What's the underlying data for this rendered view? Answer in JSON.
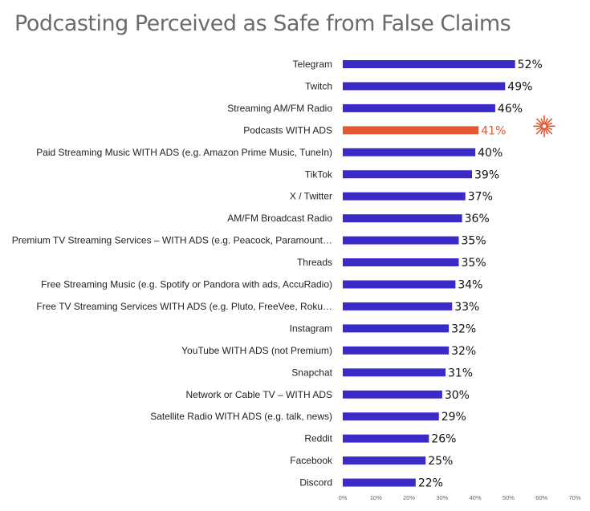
{
  "chart_data": {
    "type": "bar",
    "orientation": "horizontal",
    "title": "Podcasting Perceived as Safe from False Claims",
    "categories": [
      "Telegram",
      "Twitch",
      "Streaming AM/FM Radio",
      "Podcasts WITH ADS",
      "Paid Streaming Music WITH ADS (e.g. Amazon Prime Music, TuneIn)",
      "TikTok",
      "X / Twitter",
      "AM/FM Broadcast Radio",
      "Premium TV Streaming Services – WITH ADS (e.g. Peacock, Paramount…",
      "Threads",
      "Free Streaming Music (e.g. Spotify or Pandora with ads, AccuRadio)",
      "Free TV Streaming Services WITH ADS (e.g. Pluto, FreeVee, Roku…",
      "Instagram",
      "YouTube WITH ADS (not Premium)",
      "Snapchat",
      "Network or Cable TV – WITH ADS",
      "Satellite Radio WITH ADS (e.g. talk, news)",
      "Reddit",
      "Facebook",
      "Discord"
    ],
    "values": [
      52,
      49,
      46,
      41,
      40,
      39,
      37,
      36,
      35,
      35,
      34,
      33,
      32,
      32,
      31,
      30,
      29,
      26,
      25,
      22
    ],
    "value_labels": [
      "52%",
      "49%",
      "46%",
      "41%",
      "40%",
      "39%",
      "37%",
      "36%",
      "35%",
      "35%",
      "34%",
      "33%",
      "32%",
      "32%",
      "31%",
      "30%",
      "29%",
      "26%",
      "25%",
      "22%"
    ],
    "highlight_index": 3,
    "xlim": [
      0,
      70
    ],
    "x_ticks": [
      "0%",
      "10%",
      "20%",
      "30%",
      "40%",
      "50%",
      "60%",
      "70%"
    ],
    "grid": false,
    "colors": {
      "bar": "#3a2bc9",
      "highlight": "#e5582f",
      "highlight_label": "#e5582f",
      "burst": "#e5582f"
    }
  }
}
